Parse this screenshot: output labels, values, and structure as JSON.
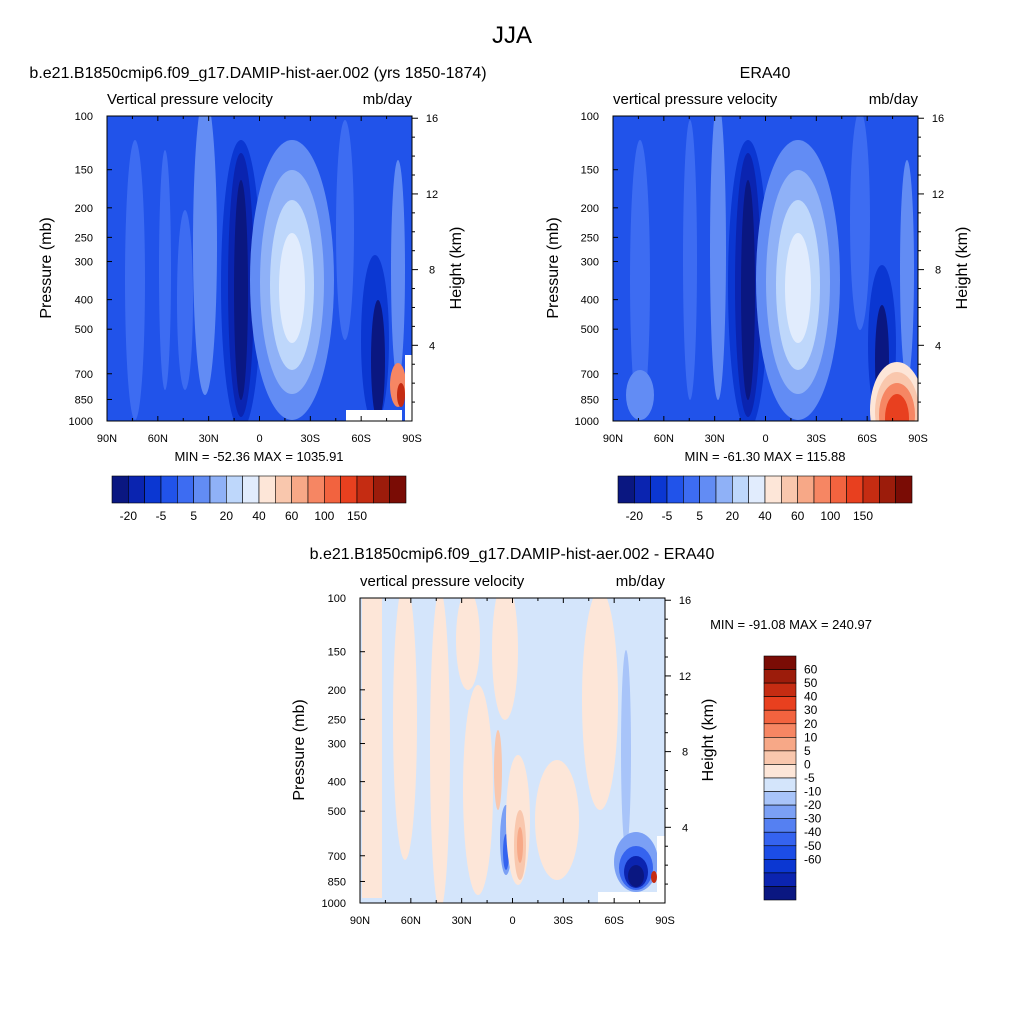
{
  "figure": {
    "title": "JJA"
  },
  "colors": {
    "panel_scale": [
      "#0a1781",
      "#0a24b0",
      "#0b37d2",
      "#2153ea",
      "#3d6cf2",
      "#628cf4",
      "#8fb1f7",
      "#bed7fb",
      "#e1ecfd",
      "#fde6d8",
      "#f9c7ad",
      "#f7a887",
      "#f68663",
      "#f2633f",
      "#e8401f",
      "#c52c12",
      "#9c1c0b",
      "#7a0c05"
    ],
    "diff_scale": [
      "#0a1781",
      "#0b24b0",
      "#0b37d2",
      "#1c4de6",
      "#3563ef",
      "#5580f2",
      "#7ba0f5",
      "#a8c4f9",
      "#d4e5fb",
      "#fde6d8",
      "#f9c7ad",
      "#f7a887",
      "#f68663",
      "#f2633f",
      "#e8401f",
      "#c52c12",
      "#9c1c0b",
      "#7a0c05"
    ]
  },
  "chart_data": [
    {
      "id": "model",
      "type": "heatmap",
      "title": "b.e21.B1850cmip6.f09_g17.DAMIP-hist-aer.002 (yrs 1850-1874)",
      "left_string": "Vertical pressure velocity",
      "right_string": "mb/day",
      "xlabel": "",
      "ylabel": "Pressure (mb)",
      "ylabel_right": "Height (km)",
      "x_ticks": [
        "90N",
        "60N",
        "30N",
        "0",
        "30S",
        "60S",
        "90S"
      ],
      "x_values": [
        90,
        60,
        30,
        0,
        -30,
        -60,
        -90
      ],
      "xlim": [
        90,
        -90
      ],
      "y_ticks": [
        "100",
        "150",
        "200",
        "250",
        "300",
        "400",
        "500",
        "700",
        "850",
        "1000"
      ],
      "y_values": [
        100,
        150,
        200,
        250,
        300,
        400,
        500,
        700,
        850,
        1000
      ],
      "ylim": [
        1000,
        100
      ],
      "y_scale": "log",
      "y2_ticks": [
        "4",
        "8",
        "12",
        "16"
      ],
      "y2_values": [
        4,
        8,
        12,
        16
      ],
      "min_max": "MIN = -52.36  MAX = 1035.91",
      "colorbar_labels": [
        "-20",
        "-5",
        "5",
        "20",
        "40",
        "60",
        "100",
        "150"
      ]
    },
    {
      "id": "obs",
      "type": "heatmap",
      "title": "ERA40",
      "left_string": "vertical pressure velocity",
      "right_string": "mb/day",
      "xlabel": "",
      "ylabel": "Pressure (mb)",
      "ylabel_right": "Height (km)",
      "x_ticks": [
        "90N",
        "60N",
        "30N",
        "0",
        "30S",
        "60S",
        "90S"
      ],
      "x_values": [
        90,
        60,
        30,
        0,
        -30,
        -60,
        -90
      ],
      "xlim": [
        90,
        -90
      ],
      "y_ticks": [
        "100",
        "150",
        "200",
        "250",
        "300",
        "400",
        "500",
        "700",
        "850",
        "1000"
      ],
      "y_values": [
        100,
        150,
        200,
        250,
        300,
        400,
        500,
        700,
        850,
        1000
      ],
      "ylim": [
        1000,
        100
      ],
      "y_scale": "log",
      "y2_ticks": [
        "4",
        "8",
        "12",
        "16"
      ],
      "y2_values": [
        4,
        8,
        12,
        16
      ],
      "min_max": "MIN = -61.30  MAX = 115.88",
      "colorbar_labels": [
        "-20",
        "-5",
        "5",
        "20",
        "40",
        "60",
        "100",
        "150"
      ]
    },
    {
      "id": "diff",
      "type": "heatmap",
      "title": "b.e21.B1850cmip6.f09_g17.DAMIP-hist-aer.002 - ERA40",
      "left_string": "vertical pressure velocity",
      "right_string": "mb/day",
      "xlabel": "",
      "ylabel": "Pressure (mb)",
      "ylabel_right": "Height (km)",
      "x_ticks": [
        "90N",
        "60N",
        "30N",
        "0",
        "30S",
        "60S",
        "90S"
      ],
      "x_values": [
        90,
        60,
        30,
        0,
        -30,
        -60,
        -90
      ],
      "xlim": [
        90,
        -90
      ],
      "y_ticks": [
        "100",
        "150",
        "200",
        "250",
        "300",
        "400",
        "500",
        "700",
        "850",
        "1000"
      ],
      "y_values": [
        100,
        150,
        200,
        250,
        300,
        400,
        500,
        700,
        850,
        1000
      ],
      "ylim": [
        1000,
        100
      ],
      "y_scale": "log",
      "y2_ticks": [
        "4",
        "8",
        "12",
        "16"
      ],
      "y2_values": [
        4,
        8,
        12,
        16
      ],
      "min_max": "MIN = -91.08  MAX = 240.97",
      "colorbar_labels": [
        "60",
        "50",
        "40",
        "30",
        "20",
        "10",
        "5",
        "0",
        "-5",
        "-10",
        "-20",
        "-30",
        "-40",
        "-50",
        "-60"
      ]
    }
  ]
}
